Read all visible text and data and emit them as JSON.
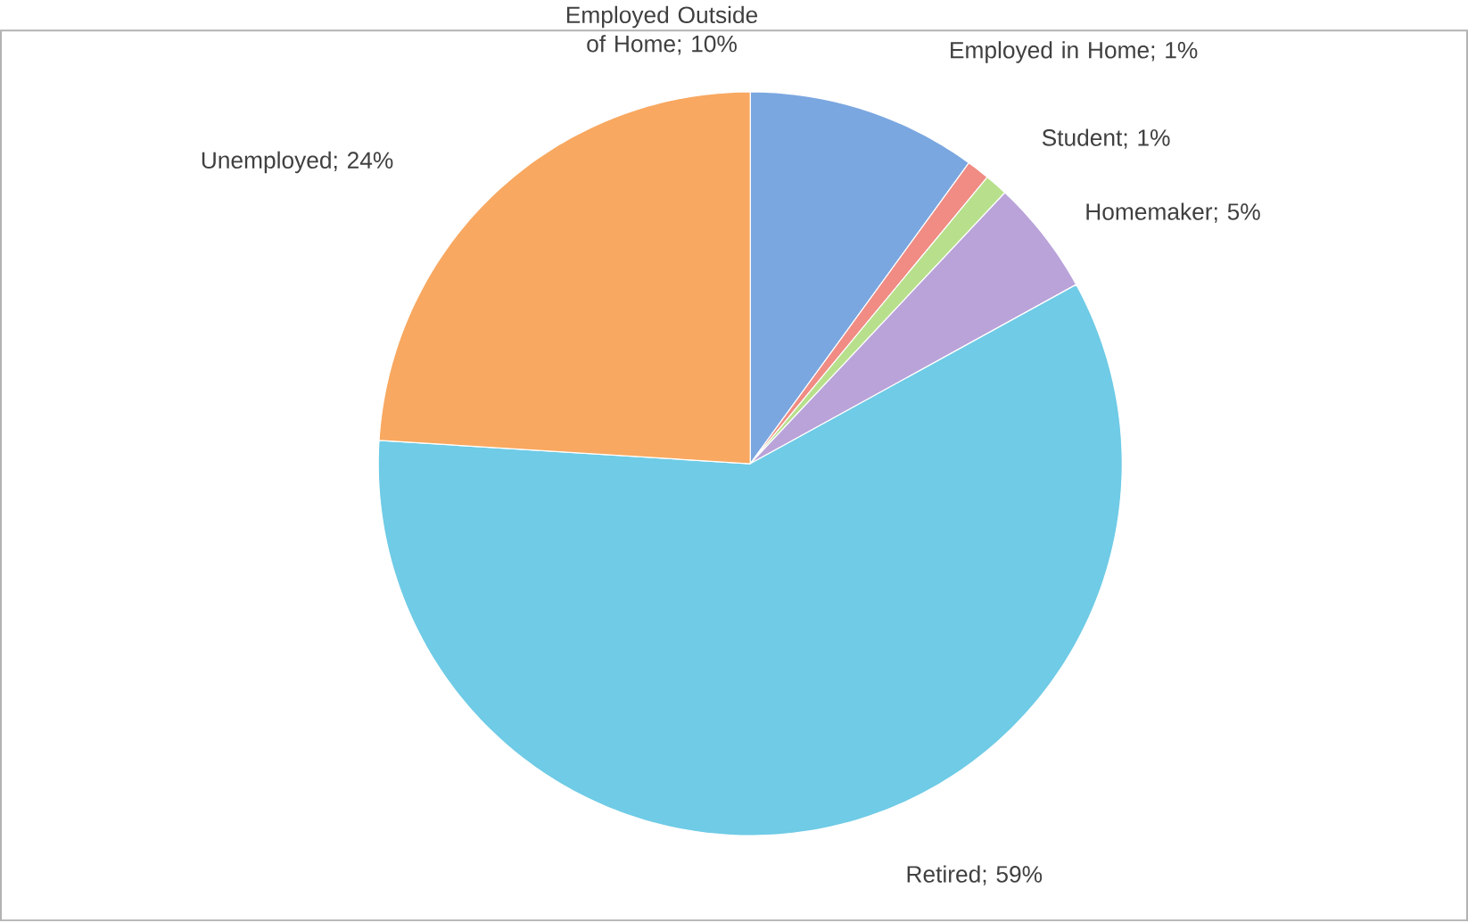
{
  "chart_data": {
    "type": "pie",
    "categories": [
      "Employed Outside of Home; 10%",
      "Employed in Home; 1%",
      "Student; 1%",
      "Homemaker; 5%",
      "Retired; 59%",
      "Unemployed; 24%"
    ],
    "values": [
      10,
      1,
      1,
      5,
      59,
      24
    ],
    "colors": [
      "#7ba7e0",
      "#f08c84",
      "#b8e08c",
      "#b9a3d9",
      "#6fcbe6",
      "#f8a860"
    ]
  }
}
